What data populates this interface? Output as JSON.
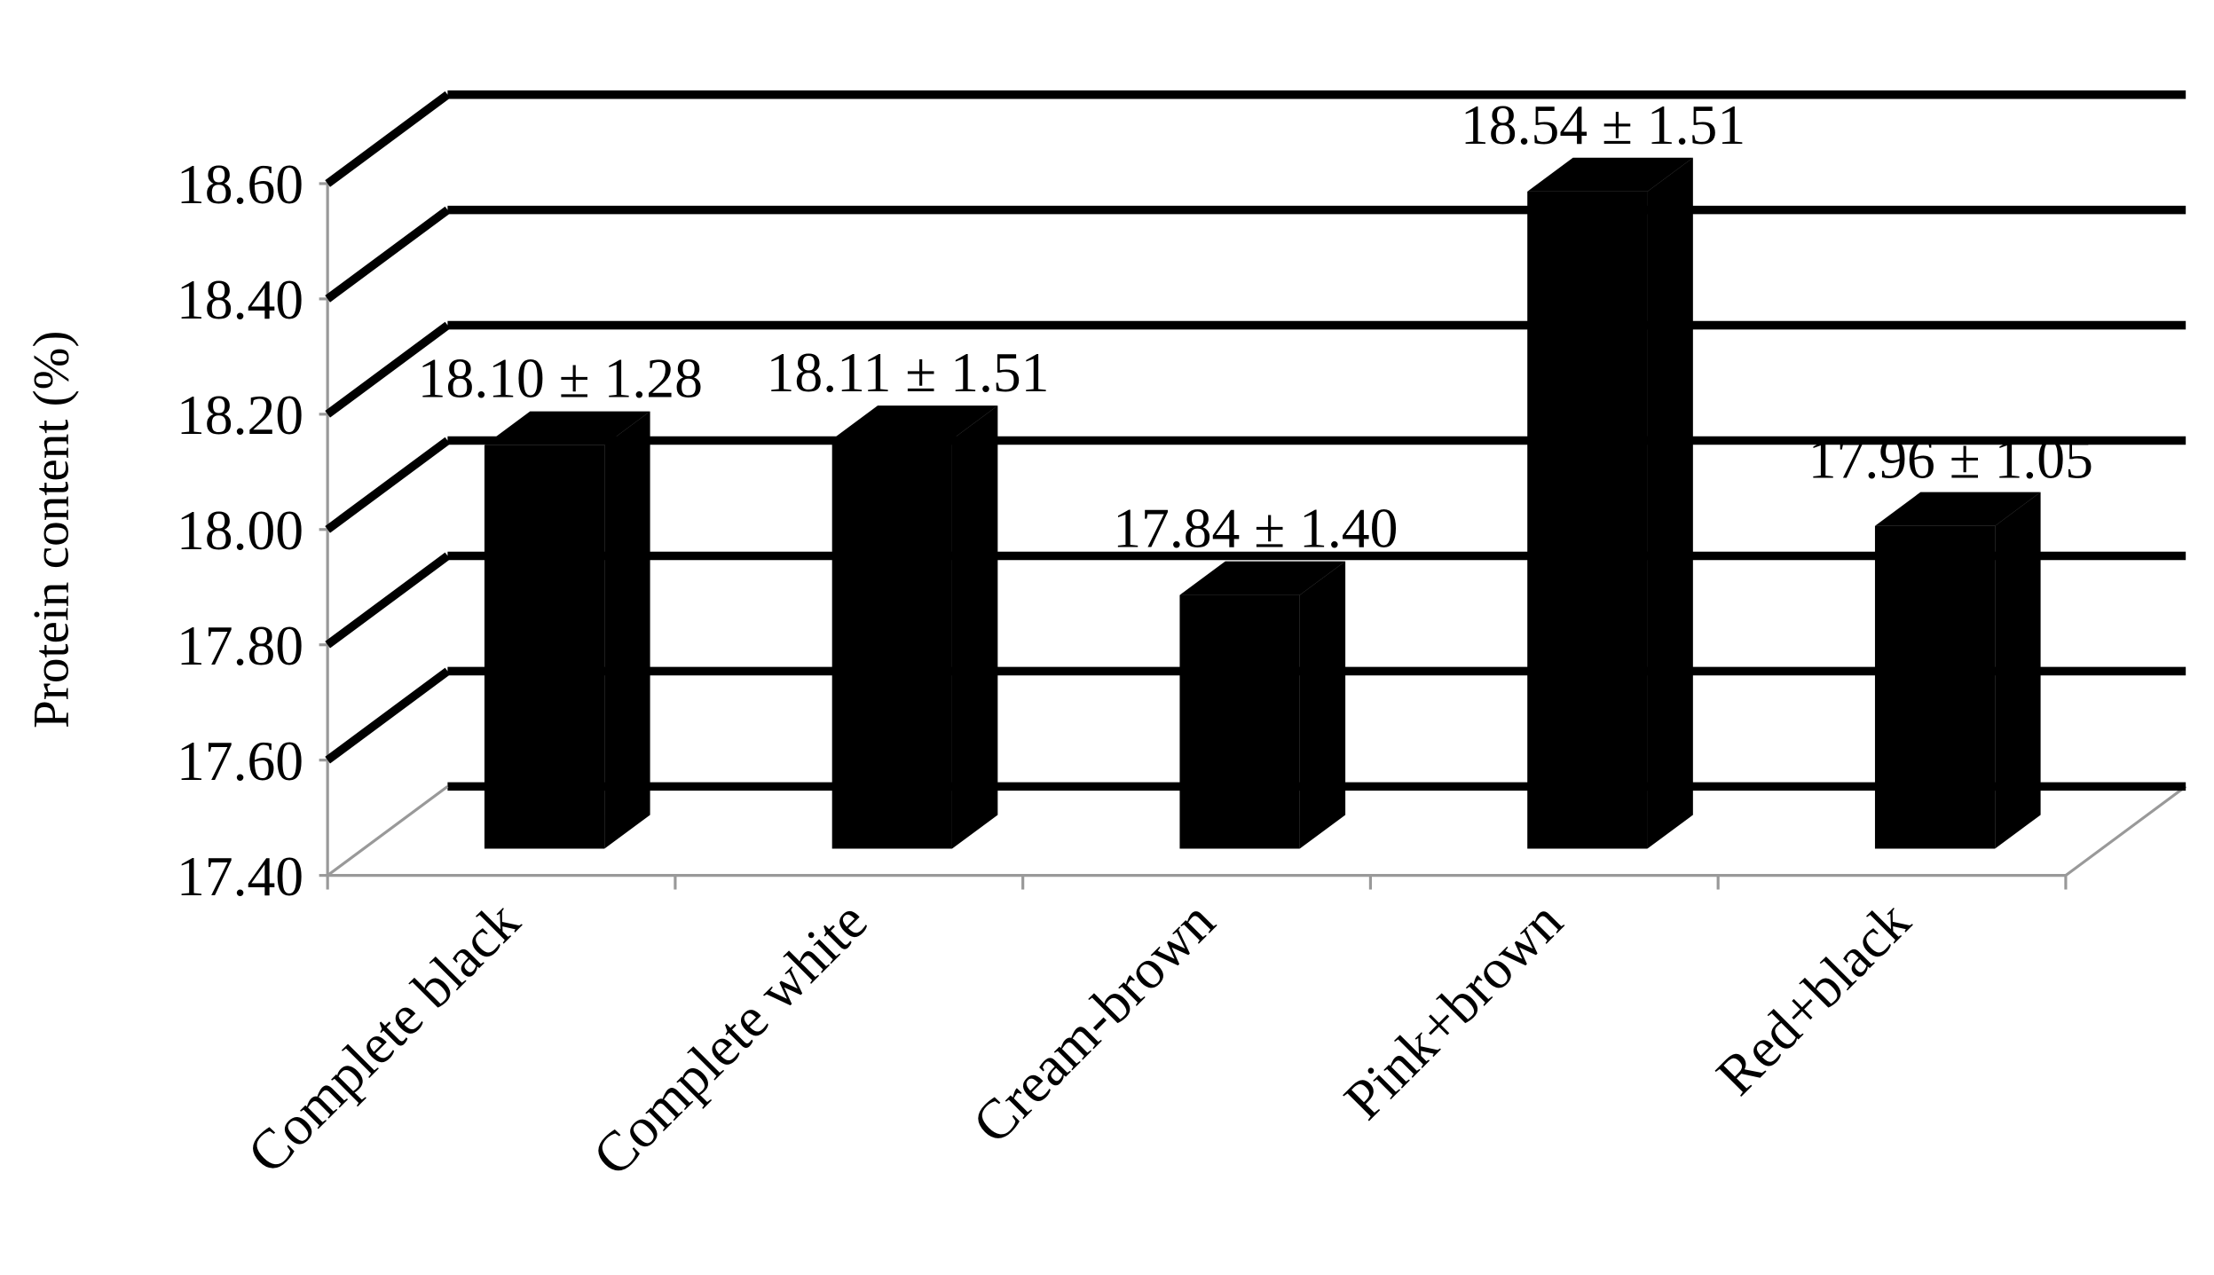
{
  "chart_data": {
    "type": "bar3d",
    "y_label": "Protein content (%)",
    "categories": [
      "Complete black",
      "Complete white",
      "Cream-brown",
      "Pink+brown",
      "Red+black"
    ],
    "values": [
      18.1,
      18.11,
      17.84,
      18.54,
      17.96
    ],
    "value_labels": [
      "18.10 ± 1.28",
      "18.11 ± 1.51",
      "17.84 ± 1.40",
      "18.54 ± 1.51",
      "17.96 ± 1.05"
    ],
    "color": "#000000",
    "ylim": [
      17.4,
      18.6
    ],
    "yticks": [
      {
        "value": 17.4,
        "label": "17.40"
      },
      {
        "value": 17.6,
        "label": "17.60"
      },
      {
        "value": 17.8,
        "label": "17.80"
      },
      {
        "value": 18.0,
        "label": "18.00"
      },
      {
        "value": 18.2,
        "label": "18.20"
      },
      {
        "value": 18.4,
        "label": "18.40"
      },
      {
        "value": 18.6,
        "label": "18.60"
      }
    ],
    "grid": true
  }
}
